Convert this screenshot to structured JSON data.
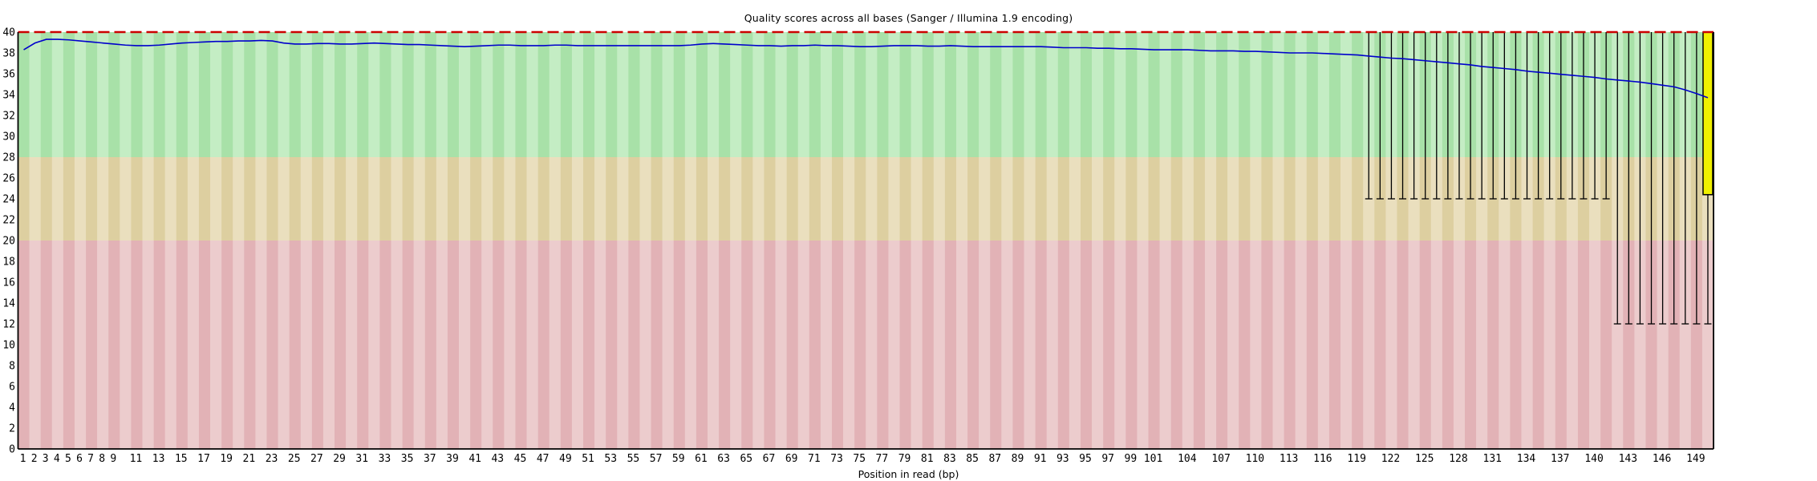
{
  "title": "Quality scores across all bases (Sanger / Illumina 1.9 encoding)",
  "xlabel": "Position in read (bp)",
  "chart_data": {
    "type": "boxplot-line",
    "title": "Quality scores across all bases (Sanger / Illumina 1.9 encoding)",
    "xlabel": "Position in read (bp)",
    "ylabel": "",
    "ylim": [
      0,
      40
    ],
    "x_positions": 150,
    "grid": false,
    "x_tick_labels": [
      1,
      2,
      3,
      4,
      5,
      6,
      7,
      8,
      9,
      11,
      13,
      15,
      17,
      19,
      21,
      23,
      25,
      27,
      29,
      31,
      33,
      35,
      37,
      39,
      41,
      43,
      45,
      47,
      49,
      51,
      53,
      55,
      57,
      59,
      61,
      63,
      65,
      67,
      69,
      71,
      73,
      75,
      77,
      79,
      81,
      83,
      85,
      87,
      89,
      91,
      93,
      95,
      97,
      99,
      101,
      104,
      107,
      110,
      113,
      116,
      119,
      122,
      125,
      128,
      131,
      134,
      137,
      140,
      143,
      146,
      149
    ],
    "y_ticks": [
      0,
      2,
      4,
      6,
      8,
      10,
      12,
      14,
      16,
      18,
      20,
      22,
      24,
      26,
      28,
      30,
      32,
      34,
      36,
      38,
      40
    ],
    "zones": [
      {
        "name": "good-quality-zone",
        "from": 28,
        "to": 40,
        "key": "green"
      },
      {
        "name": "medium-quality-zone",
        "from": 20,
        "to": 28,
        "key": "tan"
      },
      {
        "name": "poor-quality-zone",
        "from": 0,
        "to": 20,
        "key": "pink"
      }
    ],
    "mean_series": [
      38.3,
      38.95,
      39.3,
      39.3,
      39.25,
      39.15,
      39.05,
      38.95,
      38.85,
      38.75,
      38.7,
      38.7,
      38.75,
      38.85,
      38.95,
      39.0,
      39.05,
      39.1,
      39.1,
      39.15,
      39.15,
      39.2,
      39.15,
      38.95,
      38.85,
      38.85,
      38.9,
      38.9,
      38.85,
      38.85,
      38.9,
      38.95,
      38.9,
      38.85,
      38.8,
      38.8,
      38.75,
      38.7,
      38.65,
      38.6,
      38.65,
      38.7,
      38.75,
      38.75,
      38.7,
      38.7,
      38.7,
      38.75,
      38.75,
      38.7,
      38.7,
      38.7,
      38.7,
      38.7,
      38.7,
      38.7,
      38.7,
      38.7,
      38.7,
      38.75,
      38.85,
      38.9,
      38.85,
      38.8,
      38.75,
      38.7,
      38.7,
      38.65,
      38.7,
      38.7,
      38.75,
      38.7,
      38.7,
      38.65,
      38.6,
      38.6,
      38.65,
      38.7,
      38.7,
      38.7,
      38.65,
      38.65,
      38.7,
      38.65,
      38.6,
      38.6,
      38.6,
      38.6,
      38.6,
      38.6,
      38.6,
      38.55,
      38.5,
      38.5,
      38.5,
      38.45,
      38.45,
      38.4,
      38.4,
      38.35,
      38.3,
      38.3,
      38.3,
      38.3,
      38.25,
      38.2,
      38.2,
      38.2,
      38.15,
      38.15,
      38.1,
      38.05,
      38.0,
      38.0,
      38.0,
      37.95,
      37.9,
      37.85,
      37.8,
      37.7,
      37.6,
      37.5,
      37.45,
      37.35,
      37.25,
      37.15,
      37.05,
      36.95,
      36.85,
      36.7,
      36.6,
      36.5,
      36.4,
      36.25,
      36.15,
      36.05,
      35.95,
      35.85,
      35.75,
      35.65,
      35.5,
      35.4,
      35.3,
      35.2,
      35.05,
      34.9,
      34.75,
      34.45,
      34.1,
      33.7
    ],
    "whiskers": [
      {
        "from_position": 120,
        "to_position": 141,
        "high": 40,
        "low": 24
      },
      {
        "from_position": 142,
        "to_position": 150,
        "high": 40,
        "low": 12
      }
    ],
    "iqr_boxes": [
      {
        "position": 150,
        "q25": 24.4,
        "q75": 40
      }
    ],
    "threshold_line": {
      "q": 40,
      "style": "dashed"
    },
    "colors": {
      "green_dark": "#a8e1a8",
      "green_light": "#c4edc4",
      "tan_dark": "#ddcfa0",
      "tan_light": "#eadfbe",
      "pink_dark": "#e2b2b6",
      "pink_light": "#eccccd",
      "mean_line": "#0000cc",
      "threshold": "#cc0000",
      "box_fill": "#f0f000",
      "whisker": "#000000",
      "axis": "#000000"
    }
  }
}
